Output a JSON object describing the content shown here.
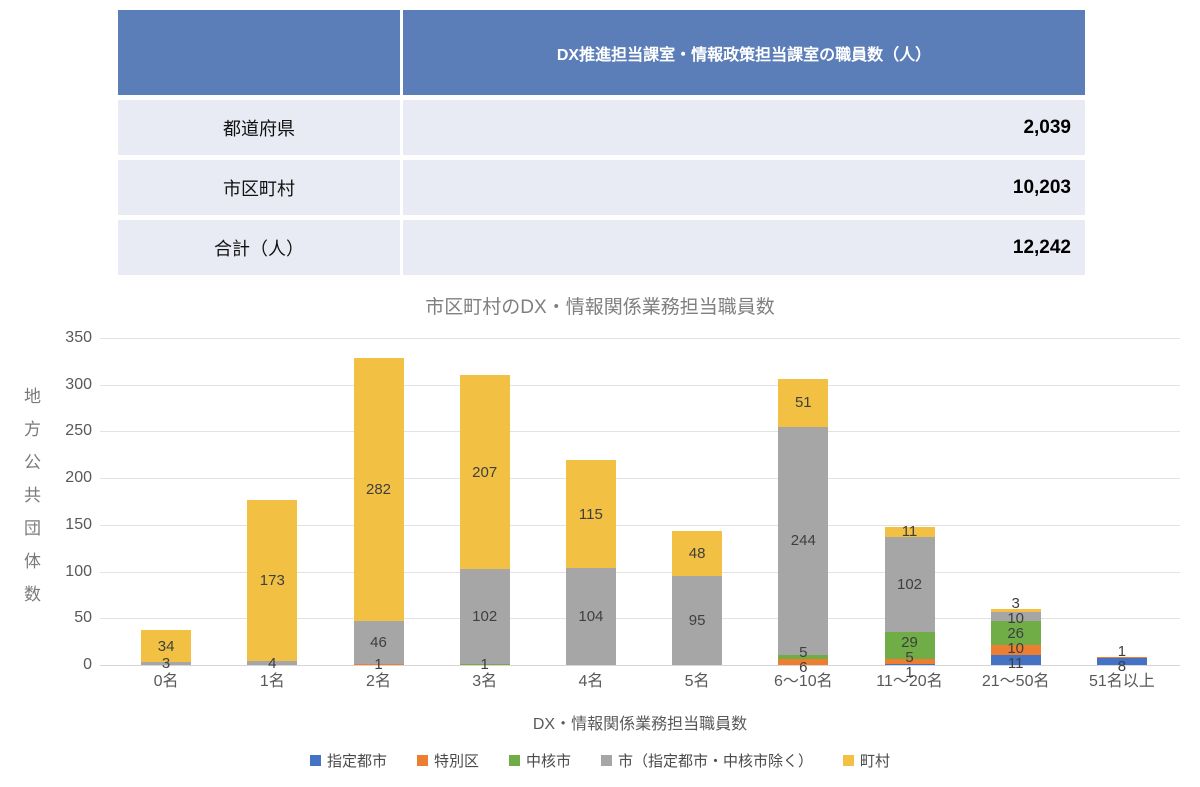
{
  "table": {
    "header_title": "DX推進担当課室・情報政策担当課室の職員数（人）",
    "rows": [
      {
        "label": "都道府県",
        "value": "2,039"
      },
      {
        "label": "市区町村",
        "value": "10,203"
      },
      {
        "label": "合計（人）",
        "value": "12,242"
      }
    ]
  },
  "chart_data": {
    "type": "bar",
    "stacked": true,
    "title": "市区町村のDX・情報関係業務担当職員数",
    "xlabel": "DX・情報関係業務担当職員数",
    "ylabel": "地方公共団体数",
    "ylim": [
      0,
      350
    ],
    "ytick_step": 50,
    "grid": true,
    "legend_position": "bottom",
    "categories": [
      "0名",
      "1名",
      "2名",
      "3名",
      "4名",
      "5名",
      "6～10名",
      "11～20名",
      "21～50名",
      "51名以上"
    ],
    "series": [
      {
        "name": "指定都市",
        "color": "#4472C4",
        "values": [
          0,
          0,
          0,
          0,
          0,
          0,
          0,
          1,
          11,
          8
        ]
      },
      {
        "name": "特別区",
        "color": "#ED7D31",
        "values": [
          0,
          0,
          1,
          0,
          0,
          0,
          6,
          5,
          10,
          1
        ]
      },
      {
        "name": "中核市",
        "color": "#70AD47",
        "values": [
          0,
          0,
          0,
          1,
          0,
          0,
          5,
          29,
          26,
          0
        ]
      },
      {
        "name": "市（指定都市・中核市除く）",
        "color": "#A6A6A6",
        "values": [
          3,
          4,
          46,
          102,
          104,
          95,
          244,
          102,
          10,
          0
        ]
      },
      {
        "name": "町村",
        "color": "#F2C143",
        "values": [
          34,
          173,
          282,
          207,
          115,
          48,
          51,
          11,
          3,
          0
        ]
      }
    ],
    "totals": [
      37,
      177,
      329,
      310,
      219,
      143,
      306,
      148,
      60,
      9
    ]
  }
}
